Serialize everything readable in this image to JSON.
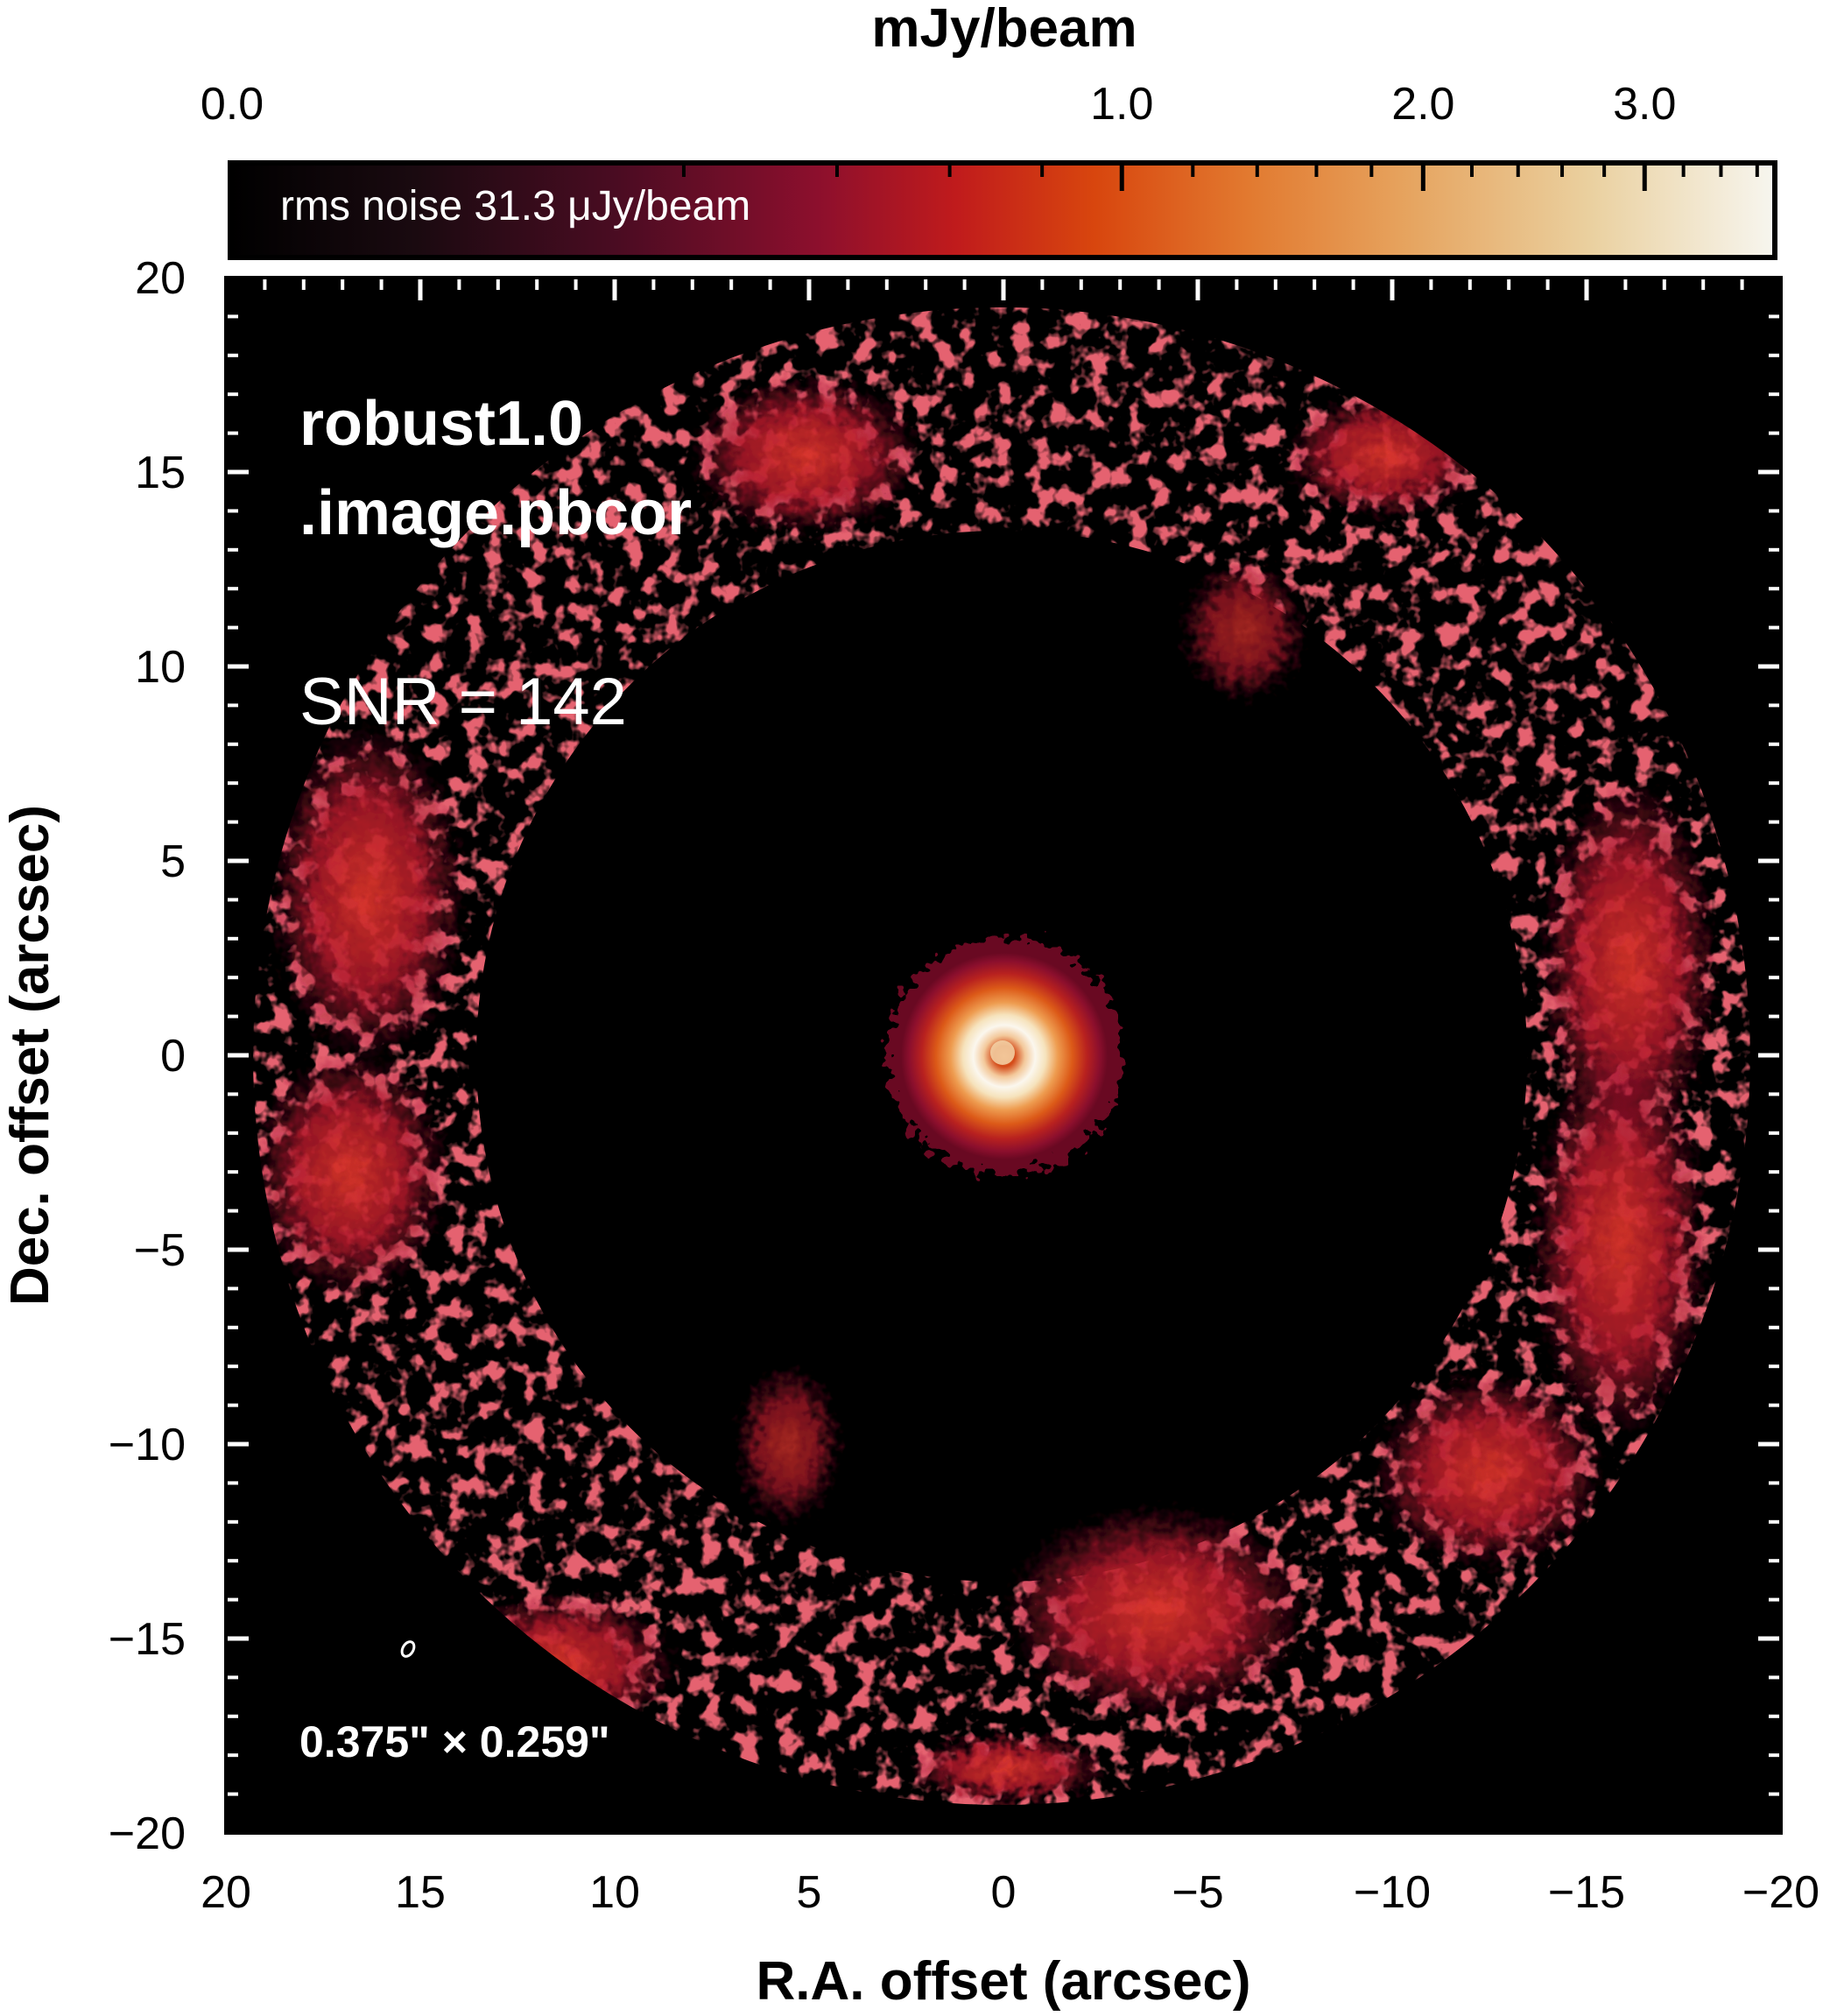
{
  "colorbar": {
    "title": "mJy/beam",
    "ticks": [
      {
        "label": "0.0",
        "value": 0.0
      },
      {
        "label": "1.0",
        "value": 1.0
      },
      {
        "label": "2.0",
        "value": 2.0
      },
      {
        "label": "3.0",
        "value": 3.0
      }
    ],
    "minor_ticks": [
      0.2,
      0.4,
      0.6,
      0.8,
      1.2,
      1.4,
      1.6,
      1.8,
      2.2,
      2.4,
      2.6,
      2.8,
      3.2,
      3.4,
      3.6
    ],
    "vmax": 3.7,
    "note": "rms noise 31.3 μJy/beam",
    "colormap": [
      "#000000",
      "#1a0a10",
      "#4a0c22",
      "#8c0f2d",
      "#c01b1c",
      "#d8460e",
      "#e27a30",
      "#e6a35e",
      "#ead09f",
      "#f7f6ef"
    ]
  },
  "panel": {
    "label_line1": "robust1.0",
    "label_line2": ".image.pbcor",
    "snr": "SNR = 142",
    "beam": "0.375\" × 0.259\"",
    "background": "#000000"
  },
  "axes": {
    "xlabel": "R.A. offset (arcsec)",
    "ylabel": "Dec. offset (arcsec)",
    "xlim": [
      20,
      -20
    ],
    "ylim": [
      -20,
      20
    ],
    "xticks": [
      {
        "label": "20",
        "value": 20
      },
      {
        "label": "15",
        "value": 15
      },
      {
        "label": "10",
        "value": 10
      },
      {
        "label": "5",
        "value": 5
      },
      {
        "label": "0",
        "value": 0
      },
      {
        "label": "−5",
        "value": -5
      },
      {
        "label": "−10",
        "value": -10
      },
      {
        "label": "−15",
        "value": -15
      },
      {
        "label": "−20",
        "value": -20
      }
    ],
    "yticks": [
      {
        "label": "20",
        "value": 20
      },
      {
        "label": "15",
        "value": 15
      },
      {
        "label": "10",
        "value": 10
      },
      {
        "label": "5",
        "value": 5
      },
      {
        "label": "0",
        "value": 0
      },
      {
        "label": "−5",
        "value": -5
      },
      {
        "label": "−10",
        "value": -10
      },
      {
        "label": "−15",
        "value": -15
      },
      {
        "label": "−20",
        "value": -20
      }
    ]
  }
}
